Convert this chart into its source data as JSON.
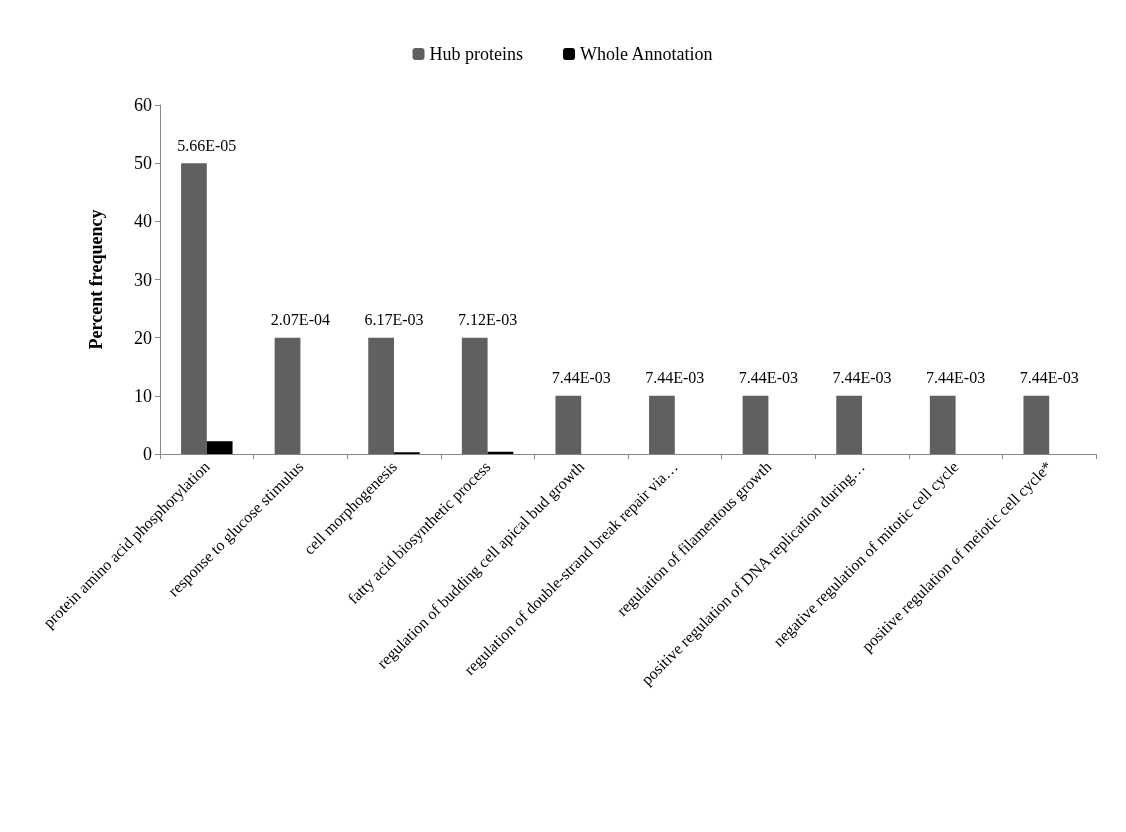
{
  "chart_data": {
    "type": "bar",
    "ylabel": "Percent frequency",
    "categories": [
      "protein amino acid phosphorylation",
      "response to glucose stimulus",
      "cell morphogenesis",
      "fatty acid biosynthetic process",
      "regulation of budding cell apical bud growth",
      "regulation of double-strand break repair via…",
      "regulation of filamentous growth",
      "positive regulation of DNA replication during…",
      "negative regulation of mitotic cell cycle",
      "positive regulation of meiotic cell cycle*"
    ],
    "series": [
      {
        "name": "Hub proteins",
        "color": "#606060",
        "values": [
          50,
          20,
          20,
          20,
          10,
          10,
          10,
          10,
          10,
          10
        ]
      },
      {
        "name": "Whole Annotation",
        "color": "#000000",
        "values": [
          2.2,
          0,
          0.3,
          0.4,
          0,
          0,
          0,
          0,
          0,
          0
        ]
      }
    ],
    "annotations": [
      {
        "text": "5.66E-05",
        "x": "protein amino acid phosphorylation",
        "y": 50
      },
      {
        "text": "2.07E-04",
        "x": "response to glucose stimulus",
        "y": 20
      },
      {
        "text": "6.17E-03",
        "x": "cell morphogenesis",
        "y": 20
      },
      {
        "text": "7.12E-03",
        "x": "fatty acid biosynthetic process",
        "y": 20
      },
      {
        "text": "7.44E-03",
        "x": "regulation of budding cell apical bud growth",
        "y": 10
      },
      {
        "text": "7.44E-03",
        "x": "regulation of double-strand break repair via…",
        "y": 10
      },
      {
        "text": "7.44E-03",
        "x": "regulation of filamentous growth",
        "y": 10
      },
      {
        "text": "7.44E-03",
        "x": "positive regulation of DNA replication during…",
        "y": 10
      },
      {
        "text": "7.44E-03",
        "x": "negative regulation of mitotic cell cycle",
        "y": 10
      },
      {
        "text": "7.44E-03",
        "x": "positive regulation of meiotic cell cycle*",
        "y": 10
      }
    ],
    "ylim": [
      0,
      60
    ],
    "yticks": [
      0,
      10,
      20,
      30,
      40,
      50,
      60
    ],
    "grid": false,
    "legend": "top"
  }
}
